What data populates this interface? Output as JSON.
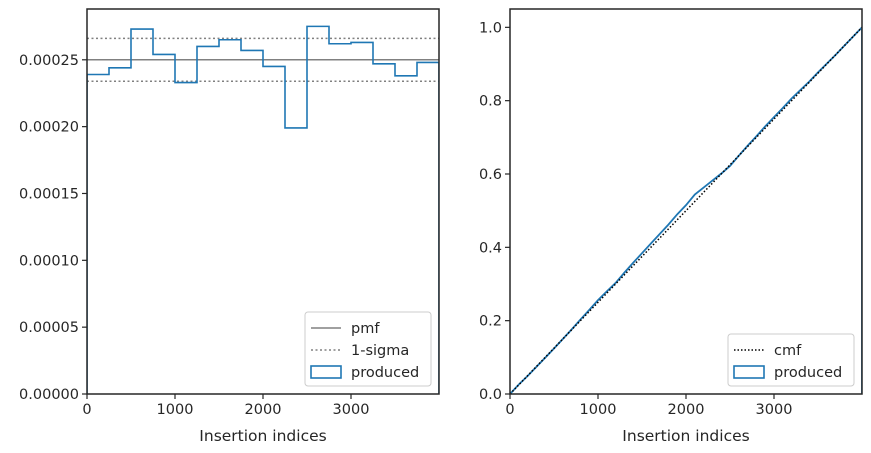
{
  "chart_data": [
    {
      "type": "histogram",
      "xlabel": "Insertion indices",
      "ylabel": "",
      "xlim": [
        0,
        4000
      ],
      "ylim": [
        0,
        0.000288
      ],
      "xticks": [
        0,
        1000,
        2000,
        3000
      ],
      "xtick_labels": [
        "0",
        "1000",
        "2000",
        "3000"
      ],
      "yticks": [
        0,
        5e-05,
        0.0001,
        0.00015,
        0.0002,
        0.00025
      ],
      "ytick_labels": [
        "0.00000",
        "0.00005",
        "0.00010",
        "0.00015",
        "0.00020",
        "0.00025"
      ],
      "grid": false,
      "legend_position": "lower-right",
      "bins": [
        0,
        250,
        500,
        750,
        1000,
        1250,
        1500,
        1750,
        2000,
        2250,
        2500,
        2750,
        3000,
        3250,
        3500,
        3750,
        4000
      ],
      "series": [
        {
          "name": "pmf",
          "style": "solid",
          "color": "#808080",
          "value": 0.00025
        },
        {
          "name": "1-sigma",
          "style": "dotted",
          "color": "#808080",
          "values": [
            0.000266,
            0.000234
          ]
        },
        {
          "name": "produced",
          "style": "step",
          "color": "#1f77b4",
          "values": [
            0.000239,
            0.000244,
            0.000273,
            0.000254,
            0.000233,
            0.00026,
            0.000265,
            0.000257,
            0.000245,
            0.000199,
            0.000275,
            0.000262,
            0.000263,
            0.000247,
            0.000238,
            0.000248
          ]
        }
      ]
    },
    {
      "type": "line",
      "xlabel": "Insertion indices",
      "ylabel": "",
      "xlim": [
        0,
        4000
      ],
      "ylim": [
        0,
        1.05
      ],
      "xticks": [
        0,
        1000,
        2000,
        3000
      ],
      "xtick_labels": [
        "0",
        "1000",
        "2000",
        "3000"
      ],
      "yticks": [
        0,
        0.2,
        0.4,
        0.6,
        0.8,
        1.0
      ],
      "ytick_labels": [
        "0.0",
        "0.2",
        "0.4",
        "0.6",
        "0.8",
        "1.0"
      ],
      "grid": false,
      "legend_position": "lower-right",
      "series": [
        {
          "name": "cmf",
          "style": "dotted",
          "color": "#000000",
          "x": [
            0,
            4000
          ],
          "y": [
            0,
            1.0
          ]
        },
        {
          "name": "produced",
          "style": "step",
          "color": "#1f77b4",
          "x": [
            0,
            100,
            200,
            300,
            400,
            500,
            600,
            700,
            800,
            900,
            1000,
            1100,
            1200,
            1300,
            1400,
            1500,
            1600,
            1700,
            1800,
            1900,
            2000,
            2100,
            2200,
            2300,
            2400,
            2500,
            2600,
            2700,
            2800,
            2900,
            3000,
            3100,
            3200,
            3300,
            3400,
            3500,
            3600,
            3700,
            3800,
            3900,
            4000
          ],
          "y": [
            0,
            0.026,
            0.049,
            0.074,
            0.099,
            0.124,
            0.15,
            0.176,
            0.203,
            0.229,
            0.256,
            0.28,
            0.303,
            0.331,
            0.358,
            0.384,
            0.41,
            0.436,
            0.462,
            0.49,
            0.515,
            0.544,
            0.563,
            0.582,
            0.601,
            0.622,
            0.65,
            0.677,
            0.703,
            0.73,
            0.755,
            0.78,
            0.806,
            0.829,
            0.852,
            0.877,
            0.901,
            0.925,
            0.95,
            0.975,
            1.0
          ]
        }
      ]
    }
  ]
}
